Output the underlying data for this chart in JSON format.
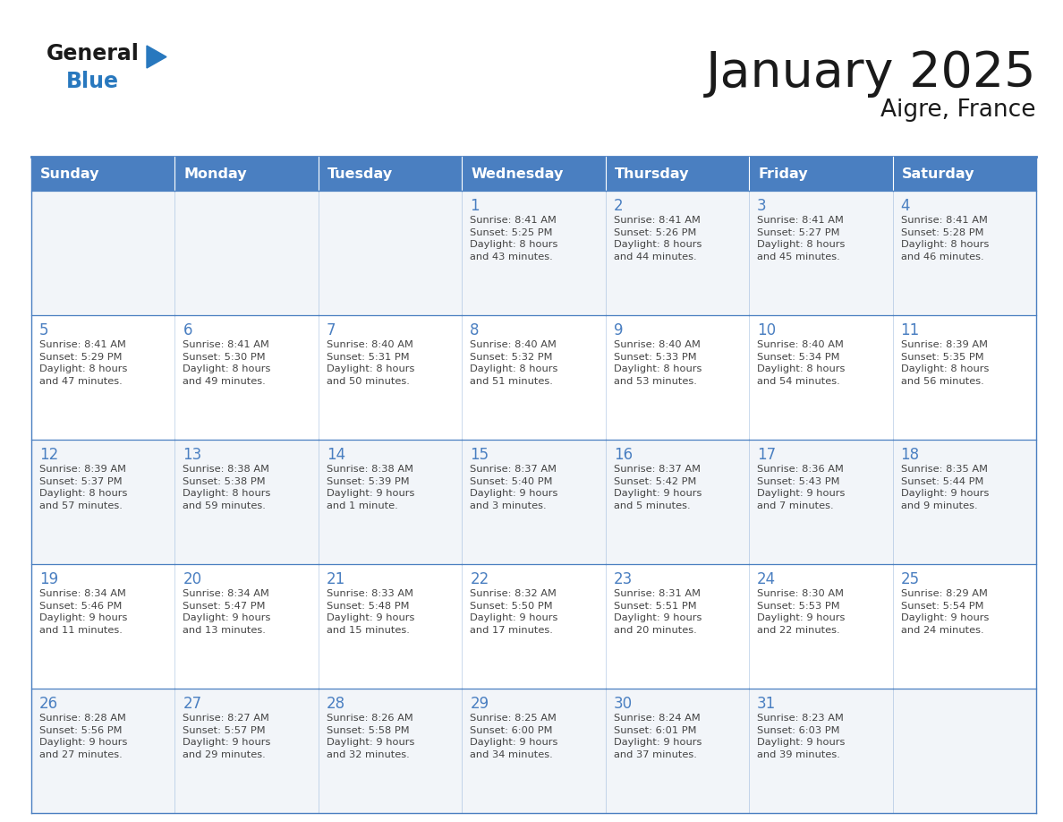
{
  "title": "January 2025",
  "subtitle": "Aigre, France",
  "days_of_week": [
    "Sunday",
    "Monday",
    "Tuesday",
    "Wednesday",
    "Thursday",
    "Friday",
    "Saturday"
  ],
  "header_bg": "#4A7FC1",
  "header_text_color": "#FFFFFF",
  "row_bg_odd": "#FFFFFF",
  "row_bg_even": "#F2F5F9",
  "border_color": "#4A7FC1",
  "day_number_color": "#4A7FC1",
  "info_text_color": "#444444",
  "title_color": "#1a1a1a",
  "logo_general_color": "#1a1a1a",
  "logo_blue_color": "#2878BE",
  "logo_triangle_color": "#2878BE",
  "calendar_data": [
    [
      {
        "day": null,
        "info": ""
      },
      {
        "day": null,
        "info": ""
      },
      {
        "day": null,
        "info": ""
      },
      {
        "day": 1,
        "info": "Sunrise: 8:41 AM\nSunset: 5:25 PM\nDaylight: 8 hours\nand 43 minutes."
      },
      {
        "day": 2,
        "info": "Sunrise: 8:41 AM\nSunset: 5:26 PM\nDaylight: 8 hours\nand 44 minutes."
      },
      {
        "day": 3,
        "info": "Sunrise: 8:41 AM\nSunset: 5:27 PM\nDaylight: 8 hours\nand 45 minutes."
      },
      {
        "day": 4,
        "info": "Sunrise: 8:41 AM\nSunset: 5:28 PM\nDaylight: 8 hours\nand 46 minutes."
      }
    ],
    [
      {
        "day": 5,
        "info": "Sunrise: 8:41 AM\nSunset: 5:29 PM\nDaylight: 8 hours\nand 47 minutes."
      },
      {
        "day": 6,
        "info": "Sunrise: 8:41 AM\nSunset: 5:30 PM\nDaylight: 8 hours\nand 49 minutes."
      },
      {
        "day": 7,
        "info": "Sunrise: 8:40 AM\nSunset: 5:31 PM\nDaylight: 8 hours\nand 50 minutes."
      },
      {
        "day": 8,
        "info": "Sunrise: 8:40 AM\nSunset: 5:32 PM\nDaylight: 8 hours\nand 51 minutes."
      },
      {
        "day": 9,
        "info": "Sunrise: 8:40 AM\nSunset: 5:33 PM\nDaylight: 8 hours\nand 53 minutes."
      },
      {
        "day": 10,
        "info": "Sunrise: 8:40 AM\nSunset: 5:34 PM\nDaylight: 8 hours\nand 54 minutes."
      },
      {
        "day": 11,
        "info": "Sunrise: 8:39 AM\nSunset: 5:35 PM\nDaylight: 8 hours\nand 56 minutes."
      }
    ],
    [
      {
        "day": 12,
        "info": "Sunrise: 8:39 AM\nSunset: 5:37 PM\nDaylight: 8 hours\nand 57 minutes."
      },
      {
        "day": 13,
        "info": "Sunrise: 8:38 AM\nSunset: 5:38 PM\nDaylight: 8 hours\nand 59 minutes."
      },
      {
        "day": 14,
        "info": "Sunrise: 8:38 AM\nSunset: 5:39 PM\nDaylight: 9 hours\nand 1 minute."
      },
      {
        "day": 15,
        "info": "Sunrise: 8:37 AM\nSunset: 5:40 PM\nDaylight: 9 hours\nand 3 minutes."
      },
      {
        "day": 16,
        "info": "Sunrise: 8:37 AM\nSunset: 5:42 PM\nDaylight: 9 hours\nand 5 minutes."
      },
      {
        "day": 17,
        "info": "Sunrise: 8:36 AM\nSunset: 5:43 PM\nDaylight: 9 hours\nand 7 minutes."
      },
      {
        "day": 18,
        "info": "Sunrise: 8:35 AM\nSunset: 5:44 PM\nDaylight: 9 hours\nand 9 minutes."
      }
    ],
    [
      {
        "day": 19,
        "info": "Sunrise: 8:34 AM\nSunset: 5:46 PM\nDaylight: 9 hours\nand 11 minutes."
      },
      {
        "day": 20,
        "info": "Sunrise: 8:34 AM\nSunset: 5:47 PM\nDaylight: 9 hours\nand 13 minutes."
      },
      {
        "day": 21,
        "info": "Sunrise: 8:33 AM\nSunset: 5:48 PM\nDaylight: 9 hours\nand 15 minutes."
      },
      {
        "day": 22,
        "info": "Sunrise: 8:32 AM\nSunset: 5:50 PM\nDaylight: 9 hours\nand 17 minutes."
      },
      {
        "day": 23,
        "info": "Sunrise: 8:31 AM\nSunset: 5:51 PM\nDaylight: 9 hours\nand 20 minutes."
      },
      {
        "day": 24,
        "info": "Sunrise: 8:30 AM\nSunset: 5:53 PM\nDaylight: 9 hours\nand 22 minutes."
      },
      {
        "day": 25,
        "info": "Sunrise: 8:29 AM\nSunset: 5:54 PM\nDaylight: 9 hours\nand 24 minutes."
      }
    ],
    [
      {
        "day": 26,
        "info": "Sunrise: 8:28 AM\nSunset: 5:56 PM\nDaylight: 9 hours\nand 27 minutes."
      },
      {
        "day": 27,
        "info": "Sunrise: 8:27 AM\nSunset: 5:57 PM\nDaylight: 9 hours\nand 29 minutes."
      },
      {
        "day": 28,
        "info": "Sunrise: 8:26 AM\nSunset: 5:58 PM\nDaylight: 9 hours\nand 32 minutes."
      },
      {
        "day": 29,
        "info": "Sunrise: 8:25 AM\nSunset: 6:00 PM\nDaylight: 9 hours\nand 34 minutes."
      },
      {
        "day": 30,
        "info": "Sunrise: 8:24 AM\nSunset: 6:01 PM\nDaylight: 9 hours\nand 37 minutes."
      },
      {
        "day": 31,
        "info": "Sunrise: 8:23 AM\nSunset: 6:03 PM\nDaylight: 9 hours\nand 39 minutes."
      },
      {
        "day": null,
        "info": ""
      }
    ]
  ]
}
